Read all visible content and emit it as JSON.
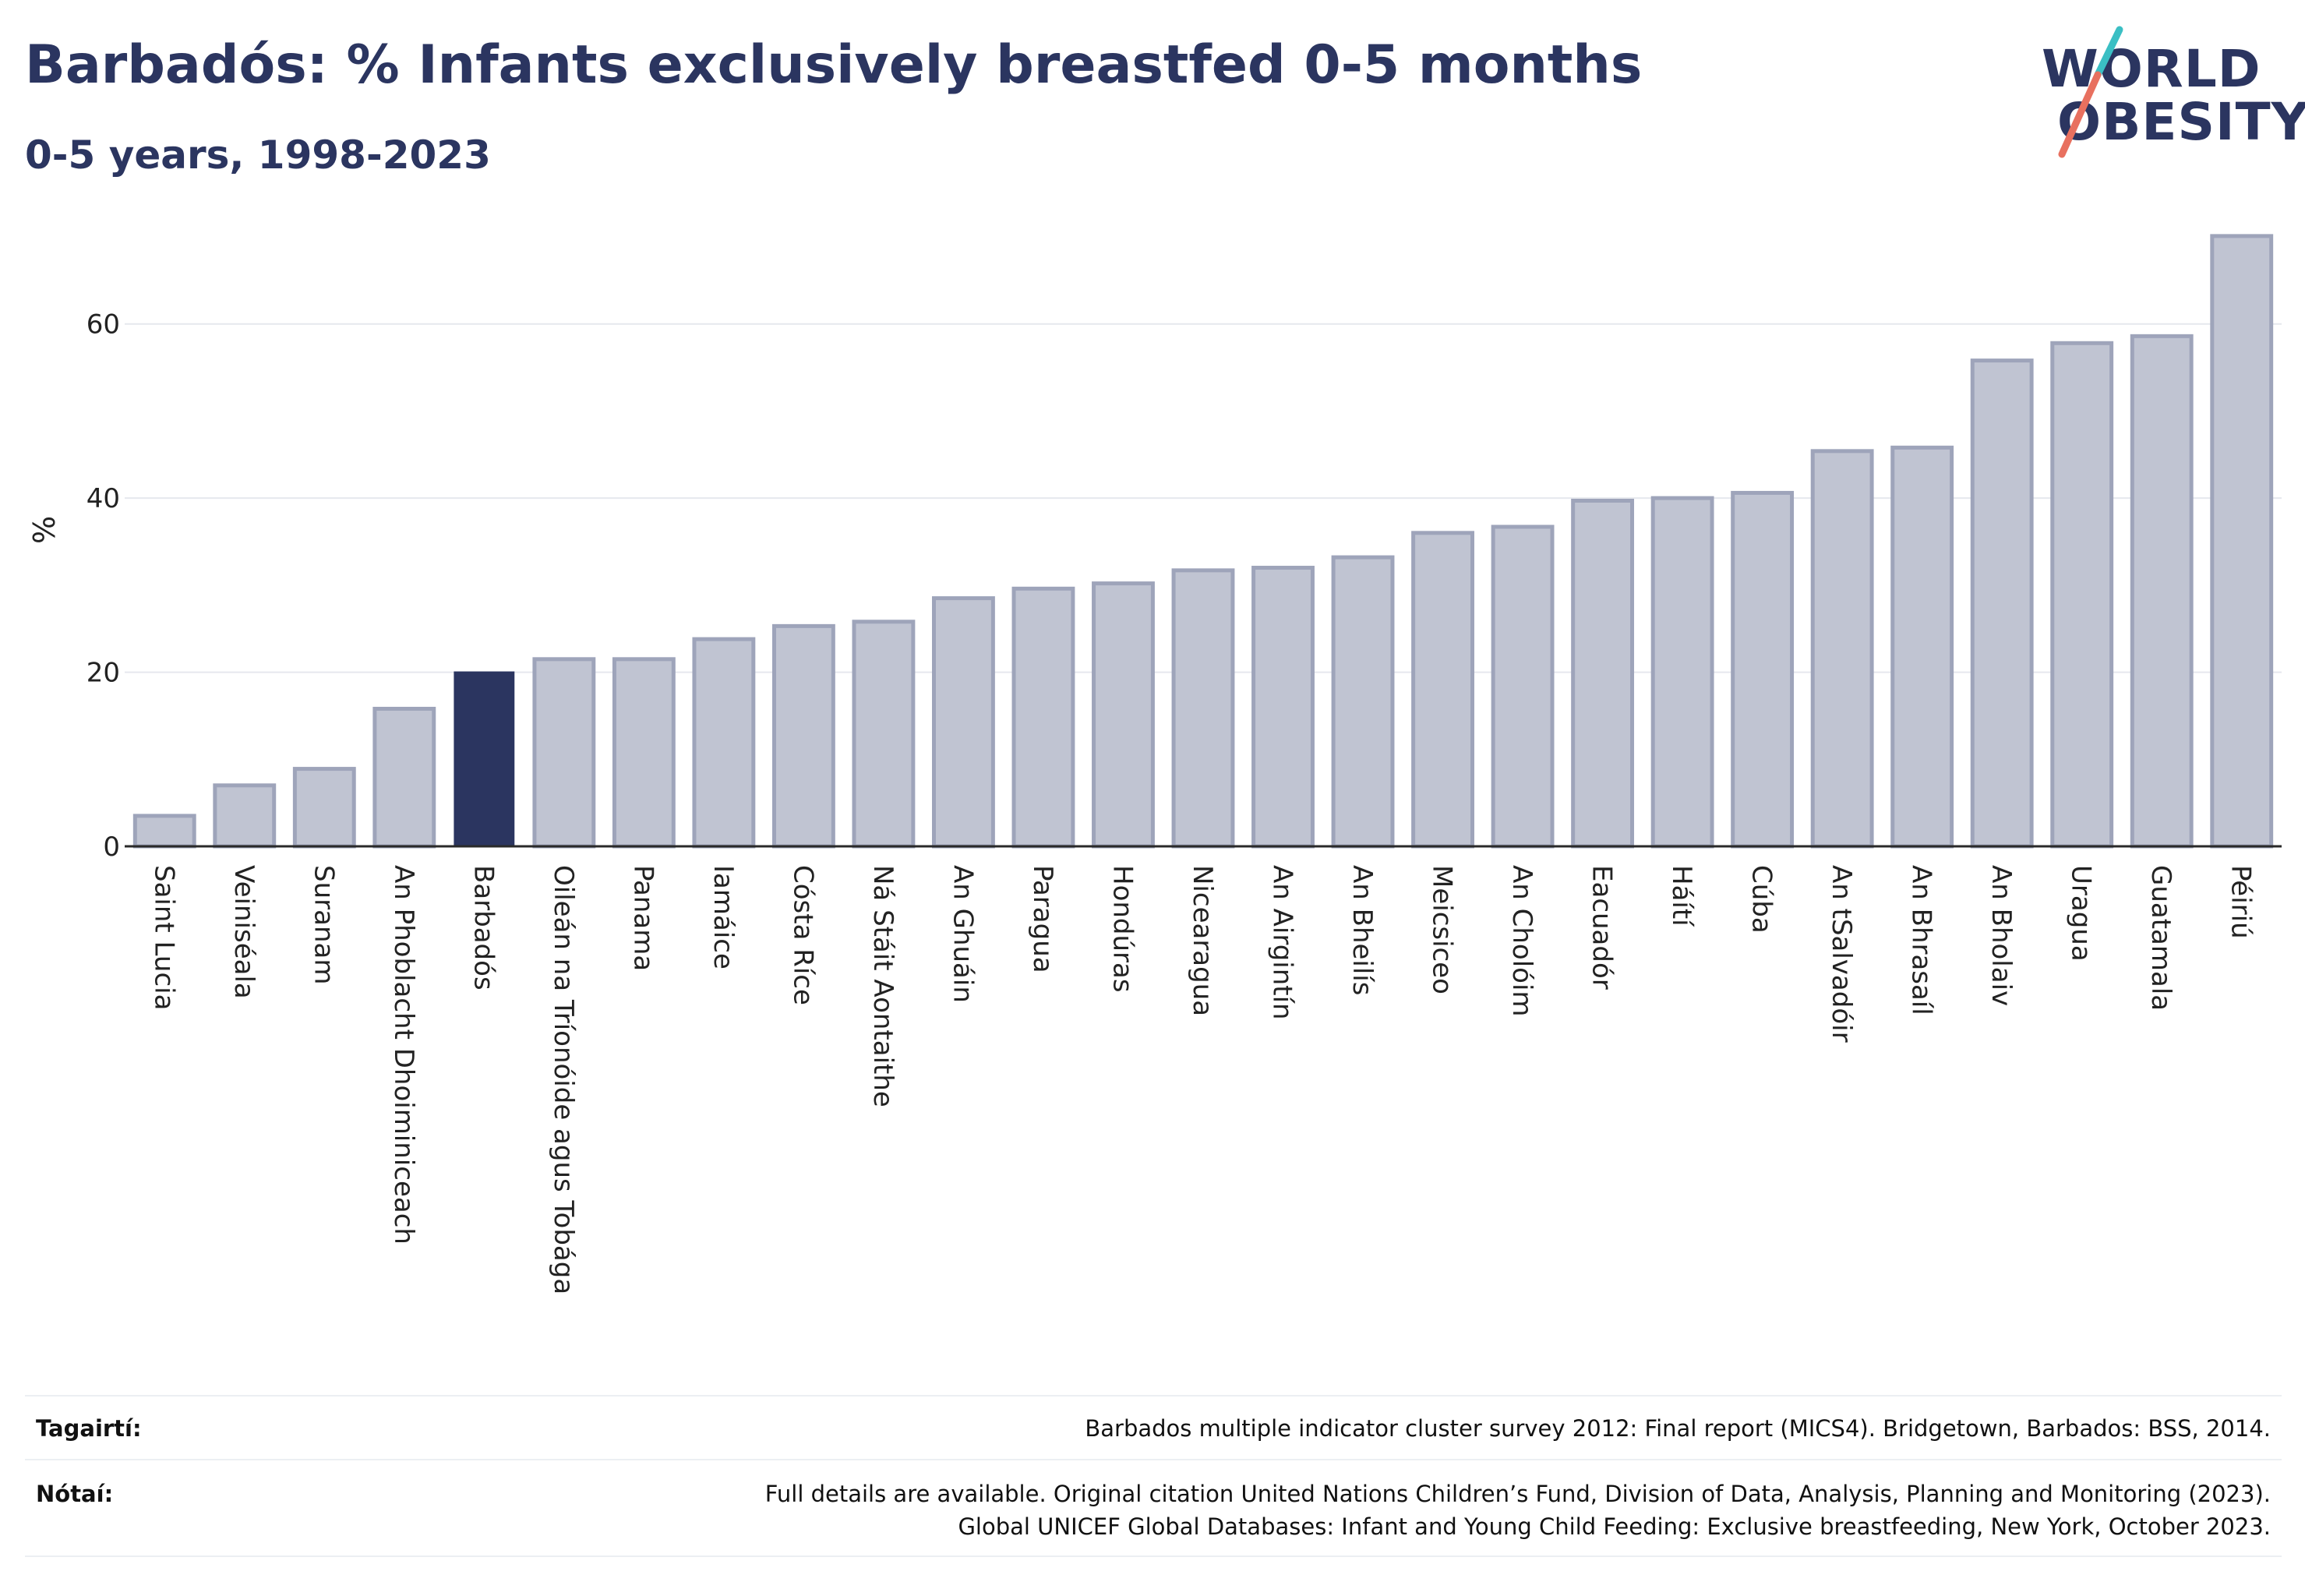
{
  "header": {
    "title": "Barbadós: % Infants exclusively breastfed 0-5 months",
    "subtitle": "0-5 years, 1998-2023"
  },
  "logo": {
    "line1": "WORLD",
    "line2": "OBESITY",
    "colors": {
      "text": "#2b3560",
      "slash_top": "#3bbfc4",
      "slash_bottom": "#e8705f"
    }
  },
  "chart_data": {
    "type": "bar",
    "ylabel": "%",
    "ylim": [
      0,
      70
    ],
    "yticks": [
      0,
      20,
      40,
      60
    ],
    "grid": true,
    "highlight": "Barbadós",
    "colors": {
      "default": "#c0c4d2",
      "default_border": "#9ea4ba",
      "highlight": "#2b3560"
    },
    "categories": [
      "Saint Lucia",
      "Veiniséala",
      "Suranam",
      "An Phoblacht Dhoiminiceach",
      "Barbadós",
      "Oileán na Tríonóide agus Tobága",
      "Panama",
      "Iamáice",
      "Cósta Ríce",
      "Ná Stáit Aontaithe",
      "An Ghuáin",
      "Paragua",
      "Hondúras",
      "Nicearagua",
      "An Airgintín",
      "An Bheilís",
      "Meicsiceo",
      "An Cholóim",
      "Eacuadór",
      "Háítí",
      "Cúba",
      "An tSalvadóir",
      "An Bhrasaíl",
      "An Bholaiv",
      "Uragua",
      "Guatamala",
      "Péiriú"
    ],
    "values": [
      3.5,
      7,
      8.9,
      15.8,
      20,
      21.5,
      21.5,
      23.8,
      25.3,
      25.8,
      28.5,
      29.6,
      30.2,
      31.7,
      32,
      33.2,
      36,
      36.7,
      39.7,
      40,
      40.6,
      45.4,
      45.8,
      55.8,
      57.8,
      58.6,
      70.1
    ]
  },
  "footer": {
    "reference_label": "Tagairtí:",
    "reference_text": "Barbados multiple indicator cluster survey 2012: Final report (MICS4). Bridgetown, Barbados: BSS, 2014.",
    "notes_label": "Nótaí:",
    "notes_line1": "Full details are available. Original citation United Nations Children’s Fund, Division of Data, Analysis, Planning and Monitoring (2023).",
    "notes_line2": "Global UNICEF Global Databases: Infant and Young Child Feeding: Exclusive breastfeeding, New York, October 2023."
  }
}
